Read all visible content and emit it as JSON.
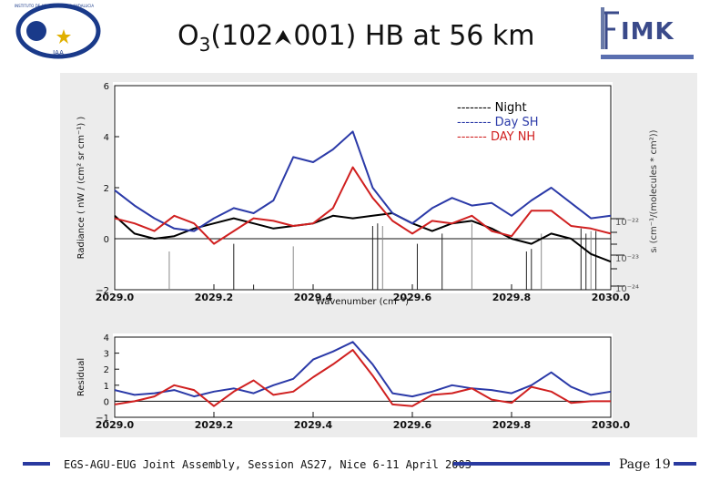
{
  "slide": {
    "title_main": "O",
    "title_sub": "3",
    "title_rest": "(102",
    "title_rest2": "001) HB at 56 km",
    "imk_logo_text": "IMK",
    "iaa_logo_text_top": "INSTITUTO DE ASTROFISICA DE ANDALUCIA",
    "iaa_logo_text_bottom": "IAA",
    "footer_left": "EGS-AGU-EUG Joint Assembly, Session AS27, Nice 6-11 April 2003",
    "footer_right": "Page 19"
  },
  "colors": {
    "night": "#000000",
    "day_sh": "#2b3aa8",
    "day_nh": "#d02020",
    "rule": "#2a3aa0"
  },
  "chart_data": [
    {
      "type": "line",
      "title": "",
      "xlabel": "Wavenumber (cm⁻¹)",
      "ylabel": "Radiance ( nW / (cm² sr cm⁻¹) )",
      "y2label": "sᵢ (cm⁻¹/(molecules * cm²))",
      "xlim": [
        2029.0,
        2030.0
      ],
      "ylim": [
        -2,
        6
      ],
      "xticks": [
        "2029.0",
        "2029.2",
        "2029.4",
        "2029.6",
        "2029.8",
        "2030.0"
      ],
      "xtick_values": [
        2029.0,
        2029.2,
        2029.4,
        2029.6,
        2029.8,
        2030.0
      ],
      "yticks": [
        "−2",
        "0",
        "2",
        "4",
        "6"
      ],
      "ytick_values": [
        -2,
        0,
        2,
        4,
        6
      ],
      "y2ticks": [
        "10⁻²²",
        "10⁻²³",
        "10⁻²⁴"
      ],
      "legend": [
        "-------- Night",
        "-------- Day SH",
        "------- DAY NH"
      ],
      "series": [
        {
          "name": "Night",
          "color": "#000000",
          "x": [
            2029.0,
            2029.04,
            2029.08,
            2029.12,
            2029.16,
            2029.2,
            2029.24,
            2029.28,
            2029.32,
            2029.36,
            2029.4,
            2029.44,
            2029.48,
            2029.52,
            2029.56,
            2029.6,
            2029.64,
            2029.68,
            2029.72,
            2029.76,
            2029.8,
            2029.84,
            2029.88,
            2029.92,
            2029.96,
            2030.0
          ],
          "y": [
            0.9,
            0.2,
            0.0,
            0.1,
            0.4,
            0.6,
            0.8,
            0.6,
            0.4,
            0.5,
            0.6,
            0.9,
            0.8,
            0.9,
            1.0,
            0.6,
            0.3,
            0.6,
            0.7,
            0.4,
            0.0,
            -0.2,
            0.2,
            0.0,
            -0.6,
            -0.9
          ]
        },
        {
          "name": "Day SH",
          "color": "#2b3aa8",
          "x": [
            2029.0,
            2029.04,
            2029.08,
            2029.12,
            2029.16,
            2029.2,
            2029.24,
            2029.28,
            2029.32,
            2029.36,
            2029.4,
            2029.44,
            2029.48,
            2029.52,
            2029.56,
            2029.6,
            2029.64,
            2029.68,
            2029.72,
            2029.76,
            2029.8,
            2029.84,
            2029.88,
            2029.92,
            2029.96,
            2030.0
          ],
          "y": [
            1.9,
            1.3,
            0.8,
            0.4,
            0.3,
            0.8,
            1.2,
            1.0,
            1.5,
            3.2,
            3.0,
            3.5,
            4.2,
            2.0,
            1.0,
            0.6,
            1.2,
            1.6,
            1.3,
            1.4,
            0.9,
            1.5,
            2.0,
            1.4,
            0.8,
            0.9
          ]
        },
        {
          "name": "DAY NH",
          "color": "#d02020",
          "x": [
            2029.0,
            2029.04,
            2029.08,
            2029.12,
            2029.16,
            2029.2,
            2029.24,
            2029.28,
            2029.32,
            2029.36,
            2029.4,
            2029.44,
            2029.48,
            2029.52,
            2029.56,
            2029.6,
            2029.64,
            2029.68,
            2029.72,
            2029.76,
            2029.8,
            2029.84,
            2029.88,
            2029.92,
            2029.96,
            2030.0
          ],
          "y": [
            0.8,
            0.6,
            0.3,
            0.9,
            0.6,
            -0.2,
            0.3,
            0.8,
            0.7,
            0.5,
            0.6,
            1.2,
            2.8,
            1.6,
            0.7,
            0.2,
            0.7,
            0.6,
            0.9,
            0.3,
            0.1,
            1.1,
            1.1,
            0.5,
            0.4,
            0.2
          ]
        }
      ],
      "line_positions": [
        2029.11,
        2029.24,
        2029.28,
        2029.36,
        2029.52,
        2029.53,
        2029.54,
        2029.61,
        2029.66,
        2029.72,
        2029.83,
        2029.84,
        2029.86,
        2029.94,
        2029.95,
        2029.96,
        2029.97
      ],
      "line_tops": [
        -0.5,
        -0.2,
        -1.8,
        -0.3,
        0.5,
        0.6,
        0.5,
        -0.2,
        0.2,
        0.6,
        -0.5,
        -0.4,
        0.2,
        0.4,
        0.2,
        0.3,
        0.3
      ]
    },
    {
      "type": "line",
      "title": "",
      "xlabel": "",
      "ylabel": "Residual",
      "xlim": [
        2029.0,
        2030.0
      ],
      "ylim": [
        -1,
        4
      ],
      "xticks": [
        "2029.0",
        "2029.2",
        "2029.4",
        "2029.6",
        "2029.8",
        "2030.0"
      ],
      "xtick_values": [
        2029.0,
        2029.2,
        2029.4,
        2029.6,
        2029.8,
        2030.0
      ],
      "yticks": [
        "−1",
        "0",
        "1",
        "2",
        "3",
        "4"
      ],
      "ytick_values": [
        -1,
        0,
        1,
        2,
        3,
        4
      ],
      "series": [
        {
          "name": "Day SH",
          "color": "#2b3aa8",
          "x": [
            2029.0,
            2029.04,
            2029.08,
            2029.12,
            2029.16,
            2029.2,
            2029.24,
            2029.28,
            2029.32,
            2029.36,
            2029.4,
            2029.44,
            2029.48,
            2029.52,
            2029.56,
            2029.6,
            2029.64,
            2029.68,
            2029.72,
            2029.76,
            2029.8,
            2029.84,
            2029.88,
            2029.92,
            2029.96,
            2030.0
          ],
          "y": [
            0.7,
            0.4,
            0.5,
            0.7,
            0.3,
            0.6,
            0.8,
            0.5,
            1.0,
            1.4,
            2.6,
            3.1,
            3.7,
            2.3,
            0.5,
            0.3,
            0.6,
            1.0,
            0.8,
            0.7,
            0.5,
            1.0,
            1.8,
            0.9,
            0.4,
            0.6
          ]
        },
        {
          "name": "DAY NH",
          "color": "#d02020",
          "x": [
            2029.0,
            2029.04,
            2029.08,
            2029.12,
            2029.16,
            2029.2,
            2029.24,
            2029.28,
            2029.32,
            2029.36,
            2029.4,
            2029.44,
            2029.48,
            2029.52,
            2029.56,
            2029.6,
            2029.64,
            2029.68,
            2029.72,
            2029.76,
            2029.8,
            2029.84,
            2029.88,
            2029.92,
            2029.96,
            2030.0
          ],
          "y": [
            -0.2,
            0.0,
            0.3,
            1.0,
            0.7,
            -0.3,
            0.6,
            1.3,
            0.4,
            0.6,
            1.5,
            2.3,
            3.2,
            1.6,
            -0.2,
            -0.3,
            0.4,
            0.5,
            0.8,
            0.1,
            -0.1,
            0.9,
            0.6,
            -0.1,
            0.0,
            0.0
          ]
        }
      ]
    }
  ]
}
